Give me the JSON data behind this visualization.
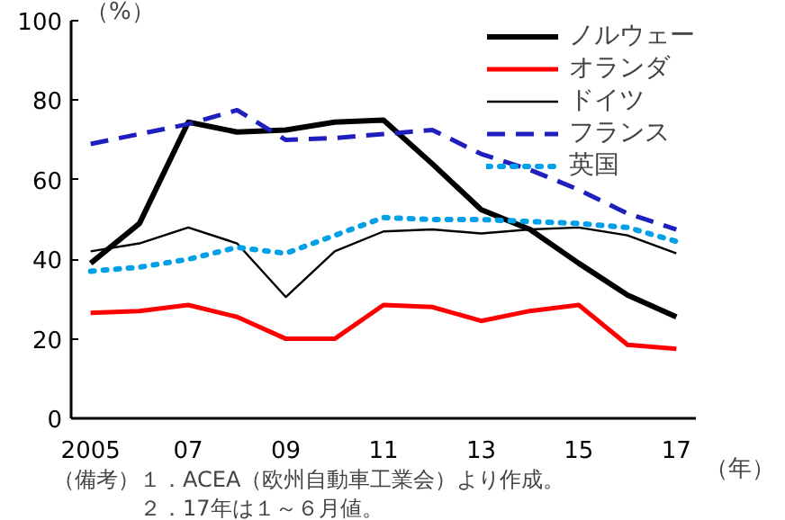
{
  "chart_data": {
    "type": "line",
    "ylabel": "（%）",
    "xlabel": "（年）",
    "x": [
      2005,
      2006,
      2007,
      2008,
      2009,
      2010,
      2011,
      2012,
      2013,
      2014,
      2015,
      2016,
      2017
    ],
    "series": [
      {
        "name": "ノルウェー",
        "color": "#000000",
        "values": [
          39,
          49,
          74.5,
          72,
          72.5,
          74.5,
          75,
          64,
          52.5,
          47.5,
          39,
          31,
          25.5
        ]
      },
      {
        "name": "オランダ",
        "color": "#ff0000",
        "values": [
          26.5,
          27,
          28.5,
          25.5,
          20,
          20,
          28.5,
          28,
          24.5,
          27,
          28.5,
          18.5,
          17.5
        ]
      },
      {
        "name": "ドイツ",
        "color": "#000000",
        "values": [
          42,
          44,
          48,
          44,
          30.5,
          42,
          47,
          47.5,
          46.5,
          47.5,
          48,
          46,
          41.5
        ]
      },
      {
        "name": "フランス",
        "color": "#1f1fbf",
        "line_style": "dashed",
        "values": [
          69,
          71.5,
          74,
          77.5,
          70,
          70.5,
          71.5,
          72.5,
          66.5,
          62.5,
          57.5,
          51.5,
          47.5
        ]
      },
      {
        "name": "英国",
        "color": "#00a0e9",
        "line_style": "dotted",
        "values": [
          37,
          38,
          40,
          43,
          41.5,
          46,
          50.5,
          50,
          50,
          49.5,
          49,
          48,
          44.5
        ]
      }
    ],
    "xlim": [
      2004.6,
      2017.4
    ],
    "xticks": [
      {
        "value": 2005,
        "label": "2005"
      },
      {
        "value": 2007,
        "label": "07"
      },
      {
        "value": 2009,
        "label": "09"
      },
      {
        "value": 2011,
        "label": "11"
      },
      {
        "value": 2013,
        "label": "13"
      },
      {
        "value": 2015,
        "label": "15"
      },
      {
        "value": 2017,
        "label": "17"
      }
    ],
    "ylim": [
      0,
      100
    ],
    "yticks": [
      0,
      20,
      40,
      60,
      80,
      100
    ],
    "grid": false,
    "legend": "top right",
    "marker": "none",
    "annotations": [
      "（備考）１．ACEA（欧州自動車工業会）より作成。",
      "　　　　２．17年は１～６月値。"
    ]
  }
}
